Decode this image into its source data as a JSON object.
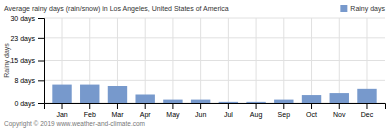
{
  "chart_data": {
    "type": "bar",
    "title": "Average rainy days (rain/snow) in Los Angeles, United States of America",
    "annotations": [
      "Copyright © 2019 www.weather-and-climate.com"
    ],
    "categories": [
      "Jan",
      "Feb",
      "Mar",
      "Apr",
      "May",
      "Jun",
      "Jul",
      "Aug",
      "Sep",
      "Oct",
      "Nov",
      "Dec"
    ],
    "series": [
      {
        "name": "Rainy days",
        "color": "#7799cc",
        "values": [
          6.5,
          6.5,
          6.0,
          3.0,
          1.2,
          1.2,
          0.4,
          0.4,
          1.2,
          2.8,
          3.5,
          5.0
        ]
      }
    ],
    "ylabel": "Rainy days",
    "ylim": [
      0,
      30
    ],
    "yticks": [
      {
        "value": 0,
        "label": "0 days"
      },
      {
        "value": 8,
        "label": "8 days"
      },
      {
        "value": 15,
        "label": "15 days"
      },
      {
        "value": 23,
        "label": "23 days"
      },
      {
        "value": 30,
        "label": "30 days"
      }
    ],
    "grid": true,
    "legend": "upper right"
  }
}
